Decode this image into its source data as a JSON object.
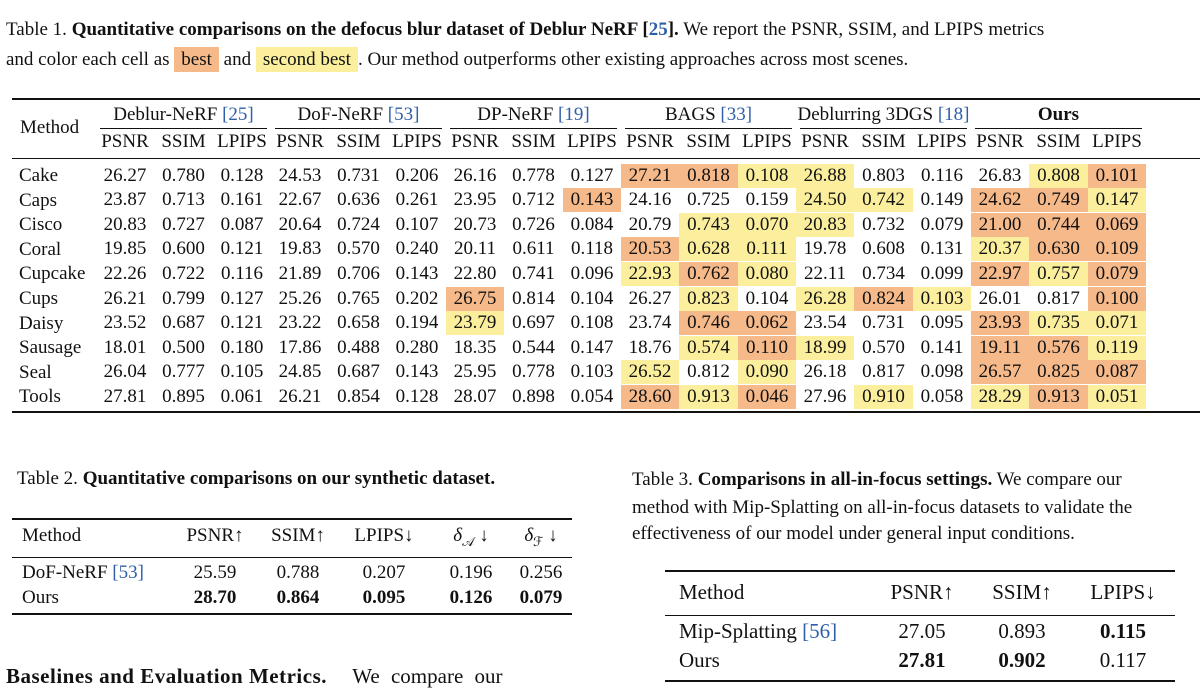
{
  "table1": {
    "caption_label": "Table 1.",
    "caption_bold": "Quantitative comparisons on the defocus blur dataset of Deblur NeRF [25].",
    "caption_rest": "We report the PSNR, SSIM, and LPIPS metrics",
    "caption_line2_a": "and color each cell as",
    "legend_best": "best",
    "caption_line2_and": "and",
    "legend_second": "second best",
    "caption_line2_b": ". Our method outperforms other existing approaches across most scenes.",
    "method_header": "Method",
    "methods": [
      {
        "name": "Deblur-NeRF",
        "cite": "[25]"
      },
      {
        "name": "DoF-NeRF",
        "cite": "[53]"
      },
      {
        "name": "DP-NeRF",
        "cite": "[19]"
      },
      {
        "name": "BAGS",
        "cite": "[33]"
      },
      {
        "name": "Deblurring 3DGS",
        "cite": "[18]"
      },
      {
        "name": "Ours",
        "cite": ""
      }
    ],
    "metrics": [
      "PSNR",
      "SSIM",
      "LPIPS"
    ],
    "best_color": "#f5b98a",
    "second_color": "#fbef9d",
    "rows": [
      {
        "scene": "Cake",
        "values": [
          "26.27",
          "0.780",
          "0.128",
          "24.53",
          "0.731",
          "0.206",
          "26.16",
          "0.778",
          "0.127",
          "27.21",
          "0.818",
          "0.108",
          "26.88",
          "0.803",
          "0.116",
          "26.83",
          "0.808",
          "0.101"
        ],
        "marks": [
          "",
          "",
          "",
          "",
          "",
          "",
          "",
          "",
          "",
          "b",
          "b",
          "s",
          "s",
          "",
          "",
          "",
          "s",
          "b"
        ]
      },
      {
        "scene": "Caps",
        "values": [
          "23.87",
          "0.713",
          "0.161",
          "22.67",
          "0.636",
          "0.261",
          "23.95",
          "0.712",
          "0.143",
          "24.16",
          "0.725",
          "0.159",
          "24.50",
          "0.742",
          "0.149",
          "24.62",
          "0.749",
          "0.147"
        ],
        "marks": [
          "",
          "",
          "",
          "",
          "",
          "",
          "",
          "",
          "b",
          "",
          "",
          "",
          "s",
          "s",
          "",
          "b",
          "b",
          "s"
        ]
      },
      {
        "scene": "Cisco",
        "values": [
          "20.83",
          "0.727",
          "0.087",
          "20.64",
          "0.724",
          "0.107",
          "20.73",
          "0.726",
          "0.084",
          "20.79",
          "0.743",
          "0.070",
          "20.83",
          "0.732",
          "0.079",
          "21.00",
          "0.744",
          "0.069"
        ],
        "marks": [
          "",
          "",
          "",
          "",
          "",
          "",
          "",
          "",
          "",
          "",
          "s",
          "s",
          "s",
          "",
          "",
          "b",
          "b",
          "b"
        ]
      },
      {
        "scene": "Coral",
        "values": [
          "19.85",
          "0.600",
          "0.121",
          "19.83",
          "0.570",
          "0.240",
          "20.11",
          "0.611",
          "0.118",
          "20.53",
          "0.628",
          "0.111",
          "19.78",
          "0.608",
          "0.131",
          "20.37",
          "0.630",
          "0.109"
        ],
        "marks": [
          "",
          "",
          "",
          "",
          "",
          "",
          "",
          "",
          "",
          "b",
          "s",
          "s",
          "",
          "",
          "",
          "s",
          "b",
          "b"
        ]
      },
      {
        "scene": "Cupcake",
        "values": [
          "22.26",
          "0.722",
          "0.116",
          "21.89",
          "0.706",
          "0.143",
          "22.80",
          "0.741",
          "0.096",
          "22.93",
          "0.762",
          "0.080",
          "22.11",
          "0.734",
          "0.099",
          "22.97",
          "0.757",
          "0.079"
        ],
        "marks": [
          "",
          "",
          "",
          "",
          "",
          "",
          "",
          "",
          "",
          "s",
          "b",
          "s",
          "",
          "",
          "",
          "b",
          "s",
          "b"
        ]
      },
      {
        "scene": "Cups",
        "values": [
          "26.21",
          "0.799",
          "0.127",
          "25.26",
          "0.765",
          "0.202",
          "26.75",
          "0.814",
          "0.104",
          "26.27",
          "0.823",
          "0.104",
          "26.28",
          "0.824",
          "0.103",
          "26.01",
          "0.817",
          "0.100"
        ],
        "marks": [
          "",
          "",
          "",
          "",
          "",
          "",
          "b",
          "",
          "",
          "",
          "s",
          "",
          "s",
          "b",
          "s",
          "",
          "",
          "b"
        ]
      },
      {
        "scene": "Daisy",
        "values": [
          "23.52",
          "0.687",
          "0.121",
          "23.22",
          "0.658",
          "0.194",
          "23.79",
          "0.697",
          "0.108",
          "23.74",
          "0.746",
          "0.062",
          "23.54",
          "0.731",
          "0.095",
          "23.93",
          "0.735",
          "0.071"
        ],
        "marks": [
          "",
          "",
          "",
          "",
          "",
          "",
          "s",
          "",
          "",
          "",
          "b",
          "b",
          "",
          "",
          "",
          "b",
          "s",
          "s"
        ]
      },
      {
        "scene": "Sausage",
        "values": [
          "18.01",
          "0.500",
          "0.180",
          "17.86",
          "0.488",
          "0.280",
          "18.35",
          "0.544",
          "0.147",
          "18.76",
          "0.574",
          "0.110",
          "18.99",
          "0.570",
          "0.141",
          "19.11",
          "0.576",
          "0.119"
        ],
        "marks": [
          "",
          "",
          "",
          "",
          "",
          "",
          "",
          "",
          "",
          "",
          "s",
          "b",
          "s",
          "",
          "",
          "b",
          "b",
          "s"
        ]
      },
      {
        "scene": "Seal",
        "values": [
          "26.04",
          "0.777",
          "0.105",
          "24.85",
          "0.687",
          "0.143",
          "25.95",
          "0.778",
          "0.103",
          "26.52",
          "0.812",
          "0.090",
          "26.18",
          "0.817",
          "0.098",
          "26.57",
          "0.825",
          "0.087"
        ],
        "marks": [
          "",
          "",
          "",
          "",
          "",
          "",
          "",
          "",
          "",
          "s",
          "",
          "s",
          "",
          "",
          "",
          "b",
          "b",
          "b"
        ]
      },
      {
        "scene": "Tools",
        "values": [
          "27.81",
          "0.895",
          "0.061",
          "26.21",
          "0.854",
          "0.128",
          "28.07",
          "0.898",
          "0.054",
          "28.60",
          "0.913",
          "0.046",
          "27.96",
          "0.910",
          "0.058",
          "28.29",
          "0.913",
          "0.051"
        ],
        "marks": [
          "",
          "",
          "",
          "",
          "",
          "",
          "",
          "",
          "",
          "b",
          "s",
          "b",
          "",
          "s",
          "",
          "s",
          "b",
          "s"
        ]
      }
    ]
  },
  "table2": {
    "caption_label": "Table 2.",
    "caption_bold": "Quantitative comparisons on our synthetic dataset.",
    "headers": [
      "Method",
      "PSNR↑",
      "SSIM↑",
      "LPIPS↓",
      "δ",
      "δ"
    ],
    "delta_subs": [
      "𝒜",
      "ℱ"
    ],
    "delta_arrow": "↓",
    "rows": [
      {
        "method": "DoF-NeRF",
        "cite": "[53]",
        "values": [
          "25.59",
          "0.788",
          "0.207",
          "0.196",
          "0.256"
        ],
        "bold": false
      },
      {
        "method": "Ours",
        "cite": "",
        "values": [
          "28.70",
          "0.864",
          "0.095",
          "0.126",
          "0.079"
        ],
        "bold": true
      }
    ]
  },
  "table3": {
    "caption_label": "Table 3.",
    "caption_bold": "Comparisons in all-in-focus settings.",
    "caption_line1_rest": "We compare our",
    "caption_line2": "method with Mip-Splatting on all-in-focus datasets to validate the",
    "caption_line3": "effectiveness of our model under general input conditions.",
    "headers": [
      "Method",
      "PSNR↑",
      "SSIM↑",
      "LPIPS↓"
    ],
    "rows": [
      {
        "method": "Mip-Splatting",
        "cite": "[56]",
        "values": [
          "27.05",
          "0.893",
          "0.115"
        ],
        "bold": [
          false,
          false,
          true
        ]
      },
      {
        "method": "Ours",
        "cite": "",
        "values": [
          "27.81",
          "0.902",
          "0.117"
        ],
        "bold": [
          true,
          true,
          false
        ]
      }
    ]
  },
  "body_text": {
    "heading": "Baselines and Evaluation Metrics.",
    "text": "We compare our"
  }
}
